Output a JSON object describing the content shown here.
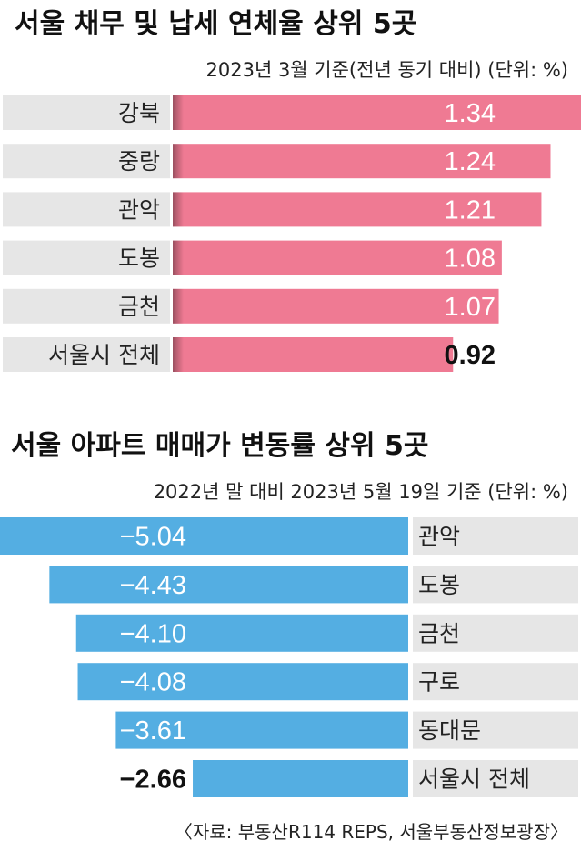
{
  "chart_data": [
    {
      "type": "bar",
      "title": "서울 채무 및 납세 연체율 상위 5곳",
      "subtitle": "2023년 3월 기준(전년 동기 대비) (단위: %)",
      "categories": [
        "강북",
        "중랑",
        "관악",
        "도봉",
        "금천",
        "서울시 전체"
      ],
      "values": [
        1.34,
        1.24,
        1.21,
        1.08,
        1.07,
        0.92
      ],
      "value_labels": [
        "1.34",
        "1.24",
        "1.21",
        "1.08",
        "1.07",
        "0.92"
      ],
      "orientation": "horizontal",
      "ylim": [
        0,
        1.34
      ],
      "color": "#ef7a93"
    },
    {
      "type": "bar",
      "title": "서울 아파트 매매가 변동률 상위 5곳",
      "subtitle": "2022년 말 대비 2023년 5월 19일 기준 (단위: %)",
      "categories": [
        "관악",
        "도봉",
        "금천",
        "구로",
        "동대문",
        "서울시 전체"
      ],
      "values": [
        -5.04,
        -4.43,
        -4.1,
        -4.08,
        -3.61,
        -2.66
      ],
      "value_labels": [
        "−5.04",
        "−4.43",
        "−4.10",
        "−4.08",
        "−3.61",
        "−2.66"
      ],
      "orientation": "horizontal",
      "ylim": [
        -5.04,
        0
      ],
      "color": "#54aee2"
    }
  ],
  "source": "〈자료: 부동산R114 REPS, 서울부동산정보광장〉",
  "colors": {
    "category_bg": "#e6e6e6",
    "pink": "#ef7a93",
    "blue": "#54aee2"
  }
}
